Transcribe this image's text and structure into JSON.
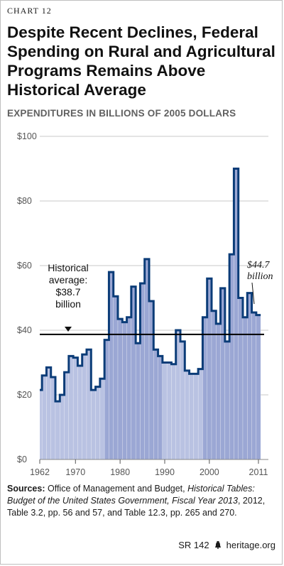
{
  "chart_label": "CHART 12",
  "footer": {
    "report_id": "SR 142",
    "site": "heritage.org"
  },
  "sources": {
    "label": "Sources:",
    "text_1": " Office of Management and Budget, ",
    "italic_title": "Historical Tables: Budget of the United States Government, Fiscal Year 2013",
    "text_2": ", 2012, Table 3.2, pp. 56 and 57, and Table 12.3, pp. 265 and 270."
  },
  "chart_data": {
    "type": "area",
    "title": "Despite Recent Declines, Federal Spending on Rural and Agricultural Programs Remains Above Historical Average",
    "ylabel": "EXPENDITURES IN BILLIONS OF 2005 DOLLARS",
    "xlabel": "",
    "xlim": [
      1962,
      2011
    ],
    "ylim": [
      0,
      100
    ],
    "yticks": [
      "$0",
      "$20",
      "$40",
      "$60",
      "$80",
      "$100"
    ],
    "ytick_values": [
      0,
      20,
      40,
      60,
      80,
      100
    ],
    "xticks": [
      "1962",
      "1970",
      "1980",
      "1990",
      "2000",
      "2011"
    ],
    "xtick_values": [
      1962,
      1970,
      1980,
      1990,
      2000,
      2011
    ],
    "grid": true,
    "colors": {
      "line": "#0b3c78",
      "fill_dark": "#9ba7d4",
      "fill_light": "#b9c2e2",
      "avg_line": "#000000",
      "grid": "#c8c8c8"
    },
    "series": [
      {
        "x": [
          1962,
          1963,
          1964,
          1965,
          1966,
          1967,
          1968,
          1969,
          1970,
          1971,
          1972,
          1973,
          1974,
          1975,
          1976,
          1977,
          1978,
          1979,
          1980,
          1981,
          1982,
          1983,
          1984,
          1985,
          1986,
          1987,
          1988,
          1989,
          1990,
          1991,
          1992,
          1993,
          1994,
          1995,
          1996,
          1997,
          1998,
          1999,
          2000,
          2001,
          2002,
          2003,
          2004,
          2005,
          2006,
          2007,
          2008,
          2009,
          2010,
          2011
        ],
        "values": [
          21.5,
          26,
          28.5,
          25.5,
          18,
          20,
          27,
          32,
          31.5,
          29,
          32.5,
          34,
          21.5,
          22.5,
          25,
          37,
          58,
          50.5,
          43.5,
          42.5,
          44,
          53.5,
          36,
          54.5,
          62,
          49,
          34,
          32,
          30,
          30,
          29.5,
          40,
          36.5,
          27.5,
          26.5,
          26.5,
          28,
          44,
          56,
          46,
          42,
          53,
          36.5,
          63.5,
          90,
          50,
          44,
          51.5,
          45.5,
          44.7
        ]
      }
    ],
    "reference_line": {
      "value": 38.7,
      "label_lines": [
        "Historical",
        "average:",
        "$38.7",
        "billion"
      ]
    },
    "end_annotation": {
      "lines": [
        "$44.7",
        "billion"
      ]
    }
  }
}
